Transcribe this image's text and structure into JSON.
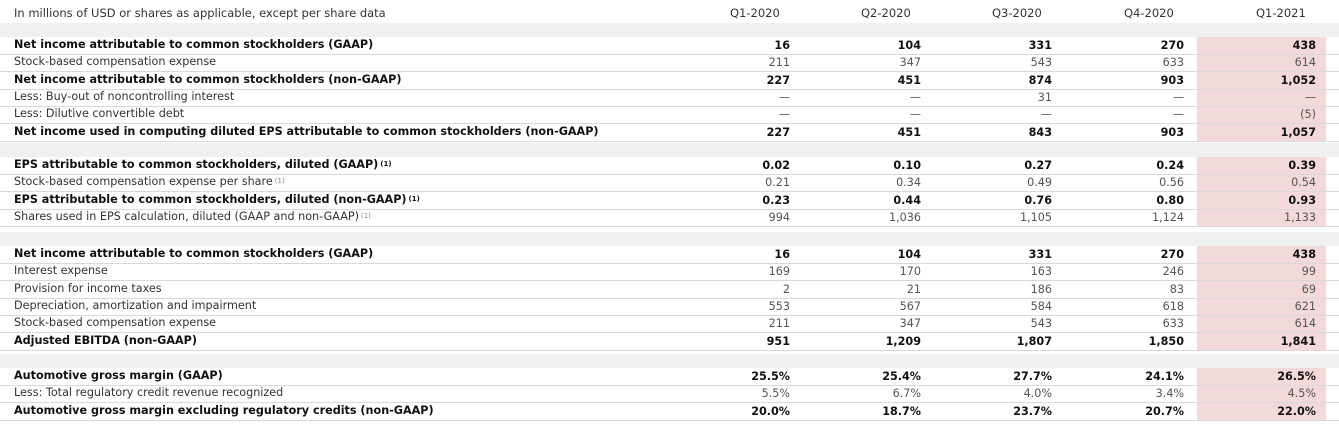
{
  "header": {
    "label": "In millions of USD or shares as applicable, except per share data",
    "columns": [
      "Q1-2020",
      "Q2-2020",
      "Q3-2020",
      "Q4-2020",
      "Q1-2021"
    ]
  },
  "sections": [
    {
      "rows": [
        {
          "label": "Net income attributable to common stockholders (GAAP)",
          "note": "",
          "bold": true,
          "values": [
            "16",
            "104",
            "331",
            "270",
            "438"
          ]
        },
        {
          "label": "Stock-based compensation expense",
          "note": "",
          "bold": false,
          "values": [
            "211",
            "347",
            "543",
            "633",
            "614"
          ]
        },
        {
          "label": "Net income attributable to common stockholders (non-GAAP)",
          "note": "",
          "bold": true,
          "values": [
            "227",
            "451",
            "874",
            "903",
            "1,052"
          ]
        },
        {
          "label": "Less: Buy-out of noncontrolling interest",
          "note": "",
          "bold": false,
          "values": [
            "—",
            "—",
            "31",
            "—",
            "—"
          ]
        },
        {
          "label": "Less: Dilutive convertible debt",
          "note": "",
          "bold": false,
          "values": [
            "—",
            "—",
            "—",
            "—",
            "(5)"
          ]
        },
        {
          "label": "Net income used in computing diluted EPS attributable to common stockholders (non-GAAP)",
          "note": "",
          "bold": true,
          "values": [
            "227",
            "451",
            "843",
            "903",
            "1,057"
          ]
        }
      ]
    },
    {
      "rows": [
        {
          "label": "EPS attributable to common stockholders, diluted (GAAP)",
          "note": "(1)",
          "bold": true,
          "values": [
            "0.02",
            "0.10",
            "0.27",
            "0.24",
            "0.39"
          ]
        },
        {
          "label": "Stock-based compensation expense per share",
          "note": "(1)",
          "bold": false,
          "values": [
            "0.21",
            "0.34",
            "0.49",
            "0.56",
            "0.54"
          ]
        },
        {
          "label": "EPS attributable to common stockholders, diluted (non-GAAP)",
          "note": "(1)",
          "bold": true,
          "values": [
            "0.23",
            "0.44",
            "0.76",
            "0.80",
            "0.93"
          ]
        },
        {
          "label": "Shares used in EPS calculation, diluted (GAAP and non-GAAP)",
          "note": "(1)",
          "bold": false,
          "values": [
            "994",
            "1,036",
            "1,105",
            "1,124",
            "1,133"
          ]
        }
      ]
    },
    {
      "rows": [
        {
          "label": "Net income attributable to common stockholders (GAAP)",
          "note": "",
          "bold": true,
          "values": [
            "16",
            "104",
            "331",
            "270",
            "438"
          ]
        },
        {
          "label": "Interest expense",
          "note": "",
          "bold": false,
          "values": [
            "169",
            "170",
            "163",
            "246",
            "99"
          ]
        },
        {
          "label": "Provision for income taxes",
          "note": "",
          "bold": false,
          "values": [
            "2",
            "21",
            "186",
            "83",
            "69"
          ]
        },
        {
          "label": "Depreciation, amortization and impairment",
          "note": "",
          "bold": false,
          "values": [
            "553",
            "567",
            "584",
            "618",
            "621"
          ]
        },
        {
          "label": "Stock-based compensation expense",
          "note": "",
          "bold": false,
          "values": [
            "211",
            "347",
            "543",
            "633",
            "614"
          ]
        },
        {
          "label": "Adjusted EBITDA (non-GAAP)",
          "note": "",
          "bold": true,
          "values": [
            "951",
            "1,209",
            "1,807",
            "1,850",
            "1,841"
          ]
        }
      ]
    },
    {
      "rows": [
        {
          "label": "Automotive gross margin (GAAP)",
          "note": "",
          "bold": true,
          "values": [
            "25.5%",
            "25.4%",
            "27.7%",
            "24.1%",
            "26.5%"
          ]
        },
        {
          "label": "Less: Total regulatory credit revenue recognized",
          "note": "",
          "bold": false,
          "values": [
            "5.5%",
            "6.7%",
            "4.0%",
            "3.4%",
            "4.5%"
          ]
        },
        {
          "label": "Automotive gross margin excluding regulatory credits (non-GAAP)",
          "note": "",
          "bold": true,
          "values": [
            "20.0%",
            "18.7%",
            "23.7%",
            "20.7%",
            "22.0%"
          ]
        }
      ]
    }
  ],
  "colors": {
    "highlight_column": "#f3d9d9",
    "band": "#f0f0f0"
  }
}
